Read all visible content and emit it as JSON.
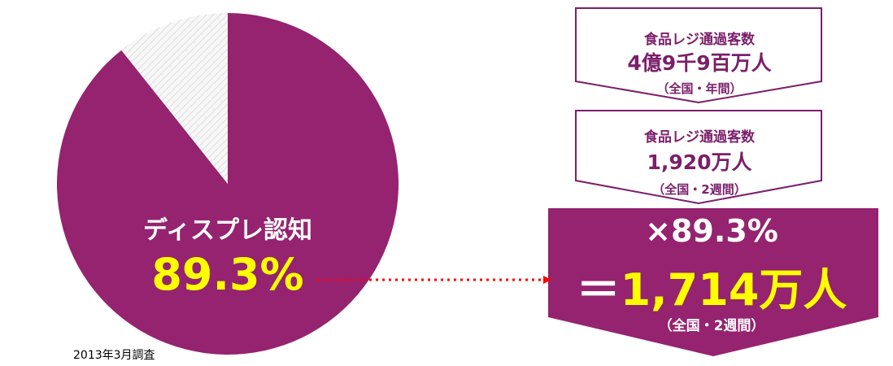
{
  "chart_data": {
    "type": "pie",
    "slices": [
      {
        "label": "ディスプレ認知",
        "value": 89.3,
        "color": "#95236f"
      },
      {
        "label": "",
        "value": 10.7,
        "color": "#e8e8e8"
      }
    ],
    "start_angle_deg": 0,
    "clockwise": true
  },
  "pie_label": {
    "title": "ディスプレ認知",
    "value": "89.3%"
  },
  "funnel": {
    "box1": {
      "line1": "食品レジ通過客数",
      "line2": "4億9千9百万人",
      "line3": "（全国・年間）"
    },
    "box2": {
      "line1": "食品レジ通過客数",
      "line2": "1,920万人",
      "line3": "（全国・2週間）"
    },
    "result": {
      "mult": "×89.3%",
      "eq_sign": "＝",
      "value": "1,714万人",
      "scope": "（全国・2週間）"
    }
  },
  "survey_note": "2013年3月調査",
  "colors": {
    "accent": "#95236f",
    "highlight": "#ffff00",
    "arrow": "#ff0000",
    "hatch": "#e8e8e8"
  }
}
